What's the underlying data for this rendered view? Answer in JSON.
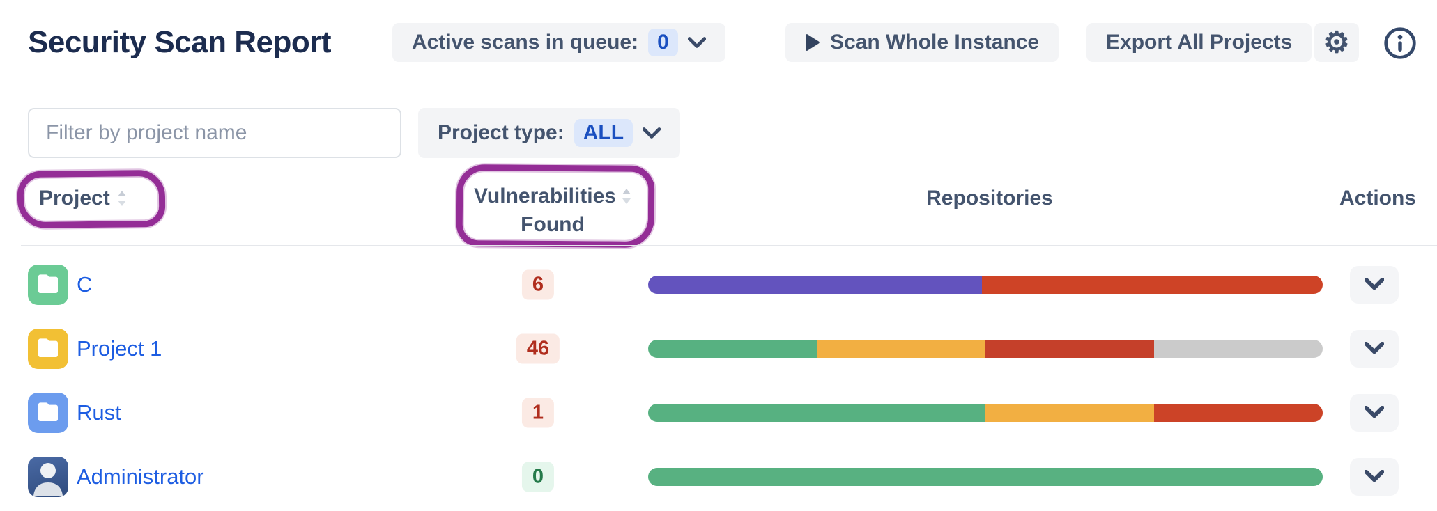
{
  "page": {
    "title": "Security Scan Report"
  },
  "toolbar": {
    "queue_label": "Active scans in queue:",
    "queue_count": "0",
    "scan_whole_instance": "Scan Whole Instance",
    "export_all_projects": "Export All Projects",
    "gear_glyph": "⚙"
  },
  "filters": {
    "search_placeholder": "Filter by project name",
    "project_type_label": "Project type:",
    "project_type_value": "ALL"
  },
  "table": {
    "headers": {
      "project": "Project",
      "vulnerabilities_line1": "Vulnerabilities",
      "vulnerabilities_line2": "Found",
      "repositories": "Repositories",
      "actions": "Actions"
    },
    "rows": [
      {
        "project": "C",
        "avatar": "folder",
        "avatar_color": "#6BCB95",
        "vulnerabilities": "6",
        "badge": "red",
        "segments": [
          {
            "color": "#6353BE",
            "pct": 49.5
          },
          {
            "color": "#CE4326",
            "pct": 50.5
          }
        ]
      },
      {
        "project": "Project 1",
        "avatar": "folder",
        "avatar_color": "#F2C034",
        "vulnerabilities": "46",
        "badge": "red",
        "segments": [
          {
            "color": "#57B181",
            "pct": 25
          },
          {
            "color": "#F2AF42",
            "pct": 25
          },
          {
            "color": "#C5402A",
            "pct": 25
          },
          {
            "color": "#CBCBCB",
            "pct": 25
          }
        ]
      },
      {
        "project": "Rust",
        "avatar": "folder",
        "avatar_color": "#6C9CEE",
        "vulnerabilities": "1",
        "badge": "red",
        "segments": [
          {
            "color": "#57B181",
            "pct": 50
          },
          {
            "color": "#F2AF42",
            "pct": 25
          },
          {
            "color": "#CC4327",
            "pct": 25
          }
        ]
      },
      {
        "project": "Administrator",
        "avatar": "person",
        "avatar_color": "#3E5C94",
        "vulnerabilities": "0",
        "badge": "green",
        "segments": [
          {
            "color": "#58B181",
            "pct": 100
          }
        ]
      }
    ]
  },
  "annotations": {
    "highlight_color": "#942D96",
    "highlighted_headers": [
      "Project",
      "Vulnerabilities Found"
    ]
  },
  "colors": {
    "title": "#1C2C4F",
    "link": "#1D5DE2",
    "button_bg": "#F3F4F6",
    "button_text": "#44546E",
    "badge_blue_bg": "#DCE7FB",
    "badge_blue_text": "#1A4FC0",
    "badge_red_bg": "#FBEAE4",
    "badge_red_text": "#B02E1E",
    "badge_green_bg": "#E5F6EC",
    "badge_green_text": "#257A4A"
  }
}
